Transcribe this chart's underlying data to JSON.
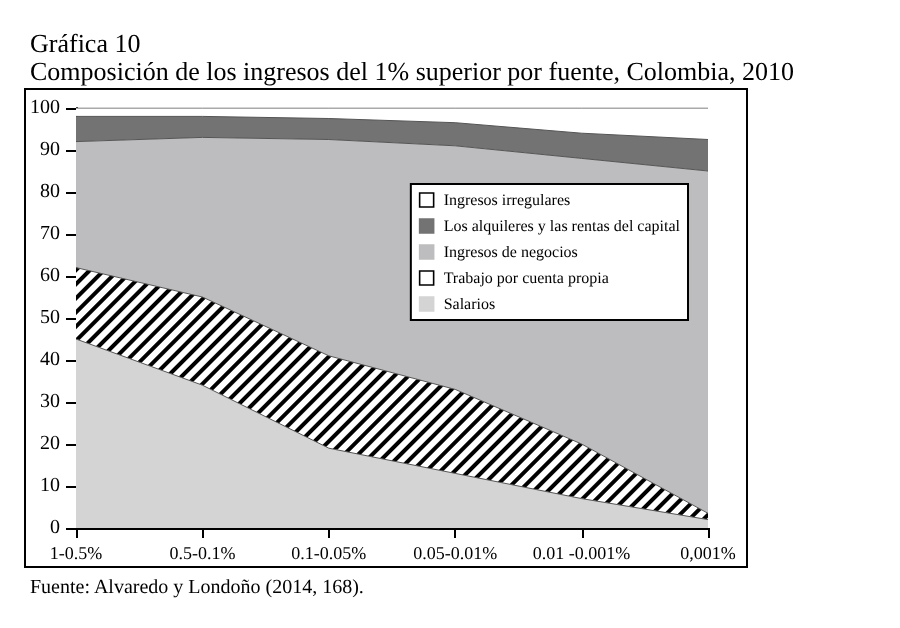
{
  "chart_data": {
    "type": "area",
    "title": "Gráfica 10",
    "subtitle": "Composición de los ingresos del 1% superior por fuente, Colombia, 2010",
    "annotations": [
      "Fuente: Alvaredo y Londoño (2014, 168)."
    ],
    "categories": [
      "1-0.5%",
      "0.5-0.1%",
      "0.1-0.05%",
      "0.05-0.01%",
      "0.01 -0.001%",
      "0,001%"
    ],
    "stacked": true,
    "ylim": [
      0,
      100
    ],
    "yticks": [
      0,
      10,
      20,
      30,
      40,
      50,
      60,
      70,
      80,
      90,
      100
    ],
    "legend": "top right",
    "series": [
      {
        "name": "Salarios",
        "color": "#d4d4d4",
        "values": [
          45,
          34,
          19,
          13,
          7,
          2
        ]
      },
      {
        "name": "Trabajo por cuenta propia",
        "color": "#ffffff",
        "values": [
          17,
          21,
          22,
          20,
          13,
          1.5
        ]
      },
      {
        "name": "Ingresos de negocios",
        "color": "#bdbdbf",
        "values": [
          30,
          38,
          51.5,
          58,
          68,
          81.5
        ]
      },
      {
        "name": "Los alquileres y las rentas del capital",
        "color": "#737373",
        "values": [
          6,
          5,
          5,
          5.5,
          6,
          7.5
        ]
      },
      {
        "name": "Ingresos irregulares",
        "color": "#ffffff",
        "values": [
          2,
          2,
          2.5,
          3.5,
          6,
          7.5
        ]
      }
    ]
  }
}
